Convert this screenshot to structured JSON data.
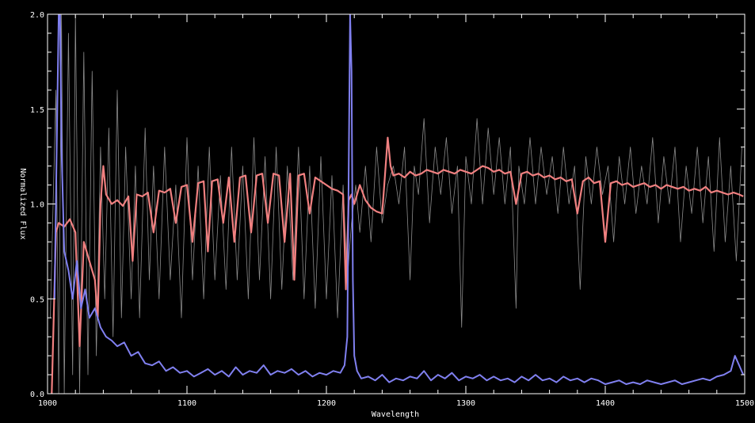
{
  "chart_data": {
    "type": "line",
    "title": "",
    "xlabel": "Wavelength",
    "ylabel": "Normalized Flux",
    "xlim": [
      1000,
      1500
    ],
    "ylim": [
      0.0,
      2.0
    ],
    "grid": false,
    "background": "#000000",
    "axis_color": "#ffffff",
    "x_ticks": [
      {
        "value": 1000,
        "label": "1000"
      },
      {
        "value": 1100,
        "label": "1100"
      },
      {
        "value": 1200,
        "label": "1200"
      },
      {
        "value": 1300,
        "label": "1300"
      },
      {
        "value": 1400,
        "label": "1400"
      },
      {
        "value": 1500,
        "label": "1500"
      }
    ],
    "y_ticks": [
      {
        "value": 0.0,
        "label": "0.0"
      },
      {
        "value": 0.5,
        "label": "0.5"
      },
      {
        "value": 1.0,
        "label": "1.0"
      },
      {
        "value": 1.5,
        "label": "1.5"
      },
      {
        "value": 2.0,
        "label": "2.0"
      }
    ],
    "series": [
      {
        "color": "#8c8c8c",
        "width": 0.8,
        "x": [
          1002,
          1006,
          1008,
          1010,
          1012,
          1015,
          1018,
          1020,
          1023,
          1026,
          1029,
          1032,
          1035,
          1038,
          1041,
          1044,
          1047,
          1050,
          1053,
          1056,
          1060,
          1063,
          1066,
          1070,
          1073,
          1076,
          1080,
          1084,
          1088,
          1092,
          1096,
          1100,
          1104,
          1108,
          1112,
          1116,
          1120,
          1124,
          1128,
          1132,
          1136,
          1140,
          1144,
          1148,
          1152,
          1156,
          1160,
          1164,
          1168,
          1172,
          1176,
          1180,
          1184,
          1188,
          1192,
          1196,
          1200,
          1204,
          1208,
          1212,
          1215,
          1218,
          1221,
          1224,
          1228,
          1232,
          1236,
          1240,
          1244,
          1248,
          1252,
          1256,
          1260,
          1263,
          1266,
          1270,
          1274,
          1278,
          1282,
          1286,
          1290,
          1294,
          1297,
          1300,
          1304,
          1308,
          1312,
          1316,
          1320,
          1324,
          1328,
          1332,
          1336,
          1338,
          1342,
          1346,
          1350,
          1354,
          1358,
          1362,
          1366,
          1370,
          1374,
          1378,
          1382,
          1386,
          1390,
          1394,
          1398,
          1402,
          1406,
          1410,
          1414,
          1418,
          1422,
          1426,
          1430,
          1434,
          1438,
          1442,
          1446,
          1450,
          1454,
          1458,
          1462,
          1466,
          1470,
          1474,
          1478,
          1482,
          1486,
          1490,
          1494,
          1498
        ],
        "values": [
          0.4,
          1.6,
          0.0,
          2.0,
          0.0,
          1.9,
          0.1,
          2.0,
          0.0,
          1.8,
          0.1,
          1.7,
          0.2,
          1.3,
          0.5,
          1.4,
          0.3,
          1.6,
          0.4,
          1.3,
          0.5,
          1.2,
          0.4,
          1.4,
          0.6,
          1.2,
          0.5,
          1.3,
          0.6,
          1.1,
          0.4,
          1.35,
          0.6,
          1.2,
          0.5,
          1.3,
          0.6,
          1.15,
          0.55,
          1.3,
          0.6,
          1.2,
          0.5,
          1.35,
          0.6,
          1.25,
          0.5,
          1.3,
          0.55,
          1.2,
          0.6,
          1.3,
          0.5,
          1.2,
          0.45,
          1.25,
          0.5,
          1.15,
          0.4,
          1.1,
          0.6,
          0.9,
          1.1,
          0.85,
          1.2,
          0.8,
          1.3,
          0.9,
          1.1,
          1.2,
          1.0,
          1.3,
          0.6,
          1.2,
          1.05,
          1.45,
          0.9,
          1.3,
          1.05,
          1.35,
          0.95,
          1.2,
          0.35,
          1.25,
          1.0,
          1.45,
          1.0,
          1.4,
          1.05,
          1.35,
          1.0,
          1.3,
          0.45,
          1.2,
          1.0,
          1.35,
          1.0,
          1.3,
          1.05,
          1.25,
          0.95,
          1.3,
          1.0,
          1.2,
          0.55,
          1.25,
          1.0,
          1.3,
          1.05,
          1.2,
          0.8,
          1.25,
          1.0,
          1.3,
          0.95,
          1.2,
          1.0,
          1.35,
          0.9,
          1.25,
          1.0,
          1.3,
          0.8,
          1.2,
          0.95,
          1.3,
          0.9,
          1.25,
          0.75,
          1.35,
          0.8,
          1.2,
          0.7,
          1.3
        ]
      },
      {
        "color": "#f08080",
        "width": 2.2,
        "x": [
          1003,
          1006,
          1008,
          1012,
          1016,
          1020,
          1023,
          1026,
          1030,
          1034,
          1036,
          1038,
          1040,
          1042,
          1046,
          1050,
          1054,
          1058,
          1061,
          1064,
          1068,
          1072,
          1076,
          1080,
          1084,
          1088,
          1092,
          1096,
          1100,
          1104,
          1108,
          1112,
          1115,
          1118,
          1122,
          1126,
          1130,
          1134,
          1138,
          1142,
          1146,
          1150,
          1154,
          1158,
          1162,
          1166,
          1170,
          1174,
          1177,
          1180,
          1184,
          1188,
          1192,
          1196,
          1200,
          1204,
          1208,
          1212,
          1214,
          1216,
          1218,
          1220,
          1224,
          1228,
          1232,
          1236,
          1240,
          1242,
          1244,
          1246,
          1248,
          1252,
          1256,
          1260,
          1264,
          1268,
          1272,
          1276,
          1280,
          1284,
          1288,
          1292,
          1296,
          1300,
          1304,
          1308,
          1312,
          1316,
          1320,
          1324,
          1328,
          1332,
          1336,
          1340,
          1344,
          1348,
          1352,
          1356,
          1360,
          1364,
          1368,
          1372,
          1376,
          1380,
          1384,
          1388,
          1392,
          1396,
          1400,
          1404,
          1408,
          1412,
          1416,
          1420,
          1424,
          1428,
          1432,
          1436,
          1440,
          1444,
          1448,
          1452,
          1456,
          1460,
          1464,
          1468,
          1472,
          1476,
          1480,
          1484,
          1488,
          1492,
          1496,
          1499
        ],
        "values": [
          0.0,
          0.85,
          0.9,
          0.88,
          0.92,
          0.85,
          0.25,
          0.8,
          0.7,
          0.6,
          0.4,
          1.0,
          1.2,
          1.05,
          1.0,
          1.02,
          0.99,
          1.04,
          0.7,
          1.05,
          1.04,
          1.06,
          0.85,
          1.07,
          1.06,
          1.08,
          0.9,
          1.09,
          1.1,
          0.8,
          1.11,
          1.12,
          0.75,
          1.12,
          1.13,
          0.9,
          1.14,
          0.8,
          1.14,
          1.15,
          0.85,
          1.15,
          1.16,
          0.9,
          1.16,
          1.15,
          0.8,
          1.16,
          0.6,
          1.15,
          1.16,
          0.95,
          1.14,
          1.12,
          1.1,
          1.08,
          1.07,
          1.05,
          0.55,
          1.02,
          1.05,
          1.0,
          1.1,
          1.02,
          0.98,
          0.96,
          0.95,
          1.15,
          1.35,
          1.2,
          1.15,
          1.16,
          1.14,
          1.17,
          1.15,
          1.16,
          1.18,
          1.17,
          1.16,
          1.18,
          1.17,
          1.16,
          1.18,
          1.17,
          1.16,
          1.18,
          1.2,
          1.19,
          1.17,
          1.18,
          1.16,
          1.17,
          1.0,
          1.16,
          1.17,
          1.15,
          1.16,
          1.14,
          1.15,
          1.13,
          1.14,
          1.12,
          1.13,
          0.95,
          1.12,
          1.14,
          1.11,
          1.12,
          0.8,
          1.11,
          1.12,
          1.1,
          1.11,
          1.09,
          1.1,
          1.11,
          1.09,
          1.1,
          1.08,
          1.1,
          1.09,
          1.08,
          1.09,
          1.07,
          1.08,
          1.07,
          1.09,
          1.06,
          1.07,
          1.06,
          1.05,
          1.06,
          1.05,
          1.04
        ]
      },
      {
        "color": "#8080f0",
        "width": 2.0,
        "x": [
          1005,
          1007,
          1008,
          1009,
          1010,
          1012,
          1015,
          1018,
          1021,
          1024,
          1027,
          1030,
          1034,
          1038,
          1042,
          1046,
          1050,
          1055,
          1060,
          1065,
          1070,
          1075,
          1080,
          1085,
          1090,
          1095,
          1100,
          1105,
          1110,
          1115,
          1120,
          1125,
          1130,
          1135,
          1140,
          1145,
          1150,
          1155,
          1160,
          1165,
          1170,
          1175,
          1180,
          1185,
          1190,
          1195,
          1200,
          1205,
          1210,
          1213,
          1215,
          1216,
          1217,
          1218,
          1219,
          1220,
          1222,
          1225,
          1230,
          1235,
          1240,
          1245,
          1250,
          1255,
          1260,
          1265,
          1270,
          1275,
          1280,
          1285,
          1290,
          1295,
          1300,
          1305,
          1310,
          1315,
          1320,
          1325,
          1330,
          1335,
          1340,
          1345,
          1350,
          1355,
          1360,
          1365,
          1370,
          1375,
          1380,
          1385,
          1390,
          1395,
          1400,
          1405,
          1410,
          1415,
          1420,
          1425,
          1430,
          1435,
          1440,
          1445,
          1450,
          1455,
          1460,
          1465,
          1470,
          1475,
          1480,
          1485,
          1490,
          1493,
          1496,
          1499
        ],
        "values": [
          0.5,
          1.5,
          2.0,
          2.0,
          1.3,
          0.75,
          0.65,
          0.5,
          0.7,
          0.45,
          0.55,
          0.4,
          0.45,
          0.35,
          0.3,
          0.28,
          0.25,
          0.27,
          0.2,
          0.22,
          0.16,
          0.15,
          0.17,
          0.12,
          0.14,
          0.11,
          0.12,
          0.09,
          0.11,
          0.13,
          0.1,
          0.12,
          0.09,
          0.14,
          0.1,
          0.12,
          0.11,
          0.15,
          0.1,
          0.12,
          0.11,
          0.13,
          0.1,
          0.12,
          0.09,
          0.11,
          0.1,
          0.12,
          0.11,
          0.15,
          0.3,
          1.2,
          2.0,
          1.7,
          0.6,
          0.2,
          0.12,
          0.08,
          0.09,
          0.07,
          0.1,
          0.06,
          0.08,
          0.07,
          0.09,
          0.08,
          0.12,
          0.07,
          0.1,
          0.08,
          0.11,
          0.07,
          0.09,
          0.08,
          0.1,
          0.07,
          0.09,
          0.07,
          0.08,
          0.06,
          0.09,
          0.07,
          0.1,
          0.07,
          0.08,
          0.06,
          0.09,
          0.07,
          0.08,
          0.06,
          0.08,
          0.07,
          0.05,
          0.06,
          0.07,
          0.05,
          0.06,
          0.05,
          0.07,
          0.06,
          0.05,
          0.06,
          0.07,
          0.05,
          0.06,
          0.07,
          0.08,
          0.07,
          0.09,
          0.1,
          0.12,
          0.2,
          0.15,
          0.1
        ]
      }
    ]
  }
}
